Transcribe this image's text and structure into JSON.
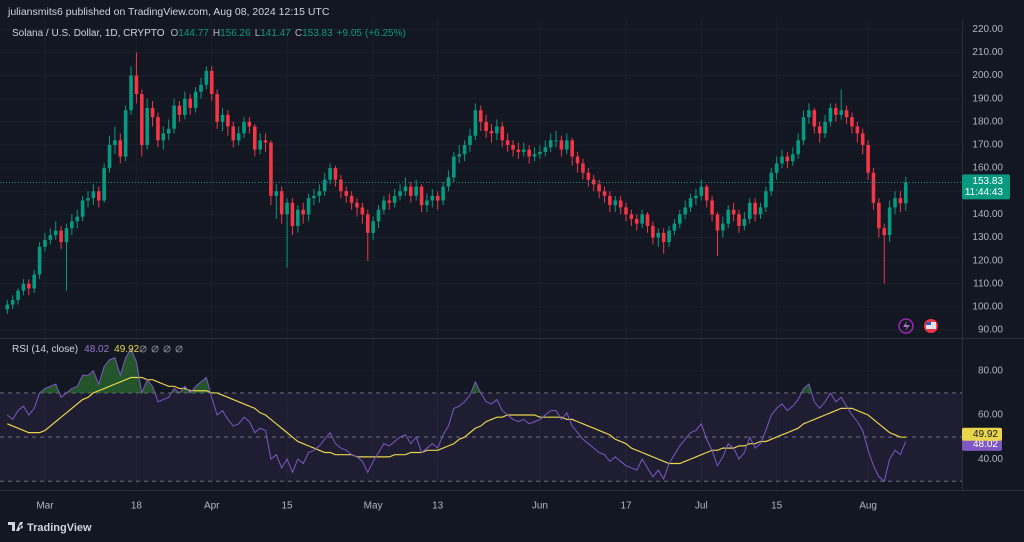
{
  "published_by": "juliansmits6 published on TradingView.com, Aug 08, 2024 12:15 UTC",
  "brand": "TradingView",
  "chart_data": [
    {
      "type": "candlestick",
      "title": "Solana / U.S. Dollar, 1D, CRYPTO",
      "ohlc_labels": [
        "O",
        "H",
        "L",
        "C"
      ],
      "change": "+9.05",
      "change_percent": "(+6.25%)",
      "countdown": "11:44:43",
      "up_color": "#089981",
      "down_color": "#f23645",
      "grid": true,
      "categories": [
        null,
        null,
        null,
        null,
        null,
        null,
        null,
        "Mar",
        null,
        null,
        null,
        null,
        null,
        null,
        null,
        null,
        null,
        null,
        null,
        null,
        null,
        null,
        null,
        null,
        "18",
        null,
        null,
        null,
        null,
        null,
        null,
        null,
        null,
        null,
        null,
        null,
        null,
        null,
        "Apr",
        null,
        null,
        null,
        null,
        null,
        null,
        null,
        null,
        null,
        null,
        null,
        null,
        null,
        "15",
        null,
        null,
        null,
        null,
        null,
        null,
        null,
        null,
        null,
        null,
        null,
        null,
        null,
        null,
        null,
        "May",
        null,
        null,
        null,
        null,
        null,
        null,
        null,
        null,
        null,
        null,
        null,
        "13",
        null,
        null,
        null,
        null,
        null,
        null,
        null,
        null,
        null,
        null,
        null,
        null,
        null,
        null,
        null,
        null,
        null,
        null,
        "Jun",
        null,
        null,
        null,
        null,
        null,
        null,
        null,
        null,
        null,
        null,
        null,
        null,
        null,
        null,
        null,
        "17",
        null,
        null,
        null,
        null,
        null,
        null,
        null,
        null,
        null,
        null,
        null,
        null,
        null,
        "Jul",
        null,
        null,
        null,
        null,
        null,
        null,
        null,
        null,
        null,
        null,
        null,
        null,
        null,
        "15",
        null,
        null,
        null,
        null,
        null,
        null,
        null,
        null,
        null,
        null,
        null,
        null,
        null,
        null,
        null,
        null,
        "Aug",
        null,
        null,
        null,
        null,
        null,
        null,
        null
      ],
      "open": [
        99,
        101,
        103,
        107,
        110,
        108,
        114,
        126,
        129,
        131,
        133,
        128,
        134,
        137,
        139,
        146,
        147,
        150,
        146,
        160,
        170,
        172,
        165,
        185,
        200,
        192,
        170,
        186,
        182,
        172,
        175,
        177,
        187,
        183,
        190,
        186,
        193,
        196,
        202,
        192,
        180,
        183,
        178,
        172,
        175,
        180,
        178,
        168,
        172,
        171,
        148,
        150,
        140,
        145,
        135,
        142,
        140,
        147,
        148,
        150,
        155,
        160,
        155,
        150,
        148,
        145,
        143,
        140,
        132,
        137,
        142,
        146,
        145,
        148,
        150,
        152,
        148,
        152,
        144,
        146,
        148,
        146,
        152,
        156,
        165,
        166,
        170,
        174,
        185,
        180,
        176,
        175,
        178,
        172,
        170,
        168,
        167,
        168,
        165,
        166,
        167,
        169,
        172,
        172,
        168,
        172,
        165,
        162,
        158,
        155,
        153,
        150,
        148,
        144,
        146,
        143,
        140,
        138,
        136,
        140,
        135,
        130,
        132,
        128,
        133,
        136,
        140,
        143,
        147,
        148,
        152,
        146,
        140,
        133,
        136,
        142,
        140,
        135,
        138,
        145,
        140,
        143,
        150,
        158,
        162,
        165,
        163,
        166,
        172,
        182,
        185,
        178,
        175,
        180,
        186,
        183,
        185,
        182,
        178,
        175,
        170,
        158,
        145,
        134,
        131,
        143,
        147,
        144.77
      ],
      "high": [
        103,
        105,
        108,
        112,
        112,
        116,
        128,
        132,
        134,
        137,
        135,
        136,
        140,
        142,
        148,
        150,
        153,
        152,
        162,
        174,
        178,
        175,
        187,
        204,
        210,
        194,
        190,
        189,
        184,
        178,
        181,
        190,
        189,
        193,
        192,
        195,
        199,
        204,
        204,
        194,
        186,
        185,
        180,
        178,
        182,
        182,
        179,
        175,
        175,
        172,
        153,
        152,
        147,
        147,
        144,
        145,
        149,
        151,
        153,
        158,
        162,
        161,
        157,
        152,
        150,
        147,
        145,
        142,
        139,
        144,
        148,
        149,
        151,
        153,
        156,
        154,
        155,
        153,
        149,
        151,
        150,
        154,
        159,
        167,
        170,
        172,
        177,
        188,
        187,
        183,
        179,
        181,
        180,
        175,
        172,
        171,
        171,
        170,
        169,
        170,
        172,
        175,
        176,
        174,
        175,
        173,
        167,
        164,
        160,
        157,
        155,
        152,
        150,
        148,
        148,
        145,
        142,
        140,
        142,
        141,
        137,
        134,
        134,
        135,
        138,
        142,
        146,
        149,
        151,
        155,
        153,
        148,
        141,
        139,
        144,
        145,
        142,
        141,
        147,
        147,
        145,
        152,
        160,
        165,
        168,
        167,
        169,
        175,
        185,
        188,
        186,
        180,
        183,
        188,
        188,
        194,
        187,
        184,
        180,
        177,
        172,
        160,
        147,
        136,
        146,
        150,
        150,
        156.26
      ],
      "low": [
        97,
        99,
        101,
        105,
        105,
        106,
        112,
        124,
        127,
        129,
        125,
        107,
        131,
        134,
        137,
        143,
        144,
        143,
        145,
        158,
        166,
        162,
        163,
        183,
        188,
        165,
        168,
        178,
        169,
        168,
        172,
        175,
        180,
        181,
        183,
        184,
        190,
        194,
        189,
        177,
        176,
        174,
        169,
        170,
        173,
        175,
        165,
        166,
        167,
        144,
        138,
        136,
        117,
        131,
        132,
        136,
        137,
        144,
        145,
        148,
        153,
        152,
        147,
        145,
        142,
        139,
        136,
        120,
        129,
        134,
        140,
        142,
        143,
        146,
        148,
        145,
        146,
        141,
        141,
        143,
        142,
        144,
        150,
        154,
        162,
        163,
        167,
        172,
        176,
        173,
        171,
        172,
        169,
        167,
        165,
        164,
        165,
        162,
        163,
        164,
        165,
        167,
        169,
        165,
        166,
        161,
        158,
        155,
        152,
        150,
        147,
        145,
        141,
        141,
        140,
        137,
        135,
        133,
        134,
        132,
        127,
        126,
        123,
        126,
        131,
        134,
        138,
        141,
        144,
        146,
        143,
        137,
        122,
        130,
        134,
        137,
        132,
        133,
        136,
        137,
        138,
        141,
        148,
        155,
        160,
        160,
        161,
        164,
        170,
        179,
        175,
        171,
        173,
        178,
        180,
        181,
        179,
        175,
        171,
        166,
        155,
        142,
        130,
        110,
        128,
        140,
        141,
        141.47
      ],
      "close": [
        101,
        103,
        107,
        110,
        108,
        114,
        126,
        129,
        131,
        133,
        128,
        134,
        137,
        139,
        146,
        147,
        150,
        146,
        160,
        170,
        172,
        165,
        185,
        200,
        192,
        170,
        186,
        182,
        172,
        175,
        177,
        187,
        183,
        190,
        186,
        193,
        196,
        202,
        192,
        180,
        183,
        178,
        172,
        175,
        180,
        178,
        168,
        172,
        171,
        148,
        150,
        140,
        145,
        135,
        142,
        140,
        147,
        148,
        150,
        155,
        160,
        155,
        150,
        148,
        145,
        143,
        140,
        132,
        137,
        142,
        146,
        145,
        148,
        150,
        152,
        148,
        152,
        144,
        146,
        148,
        146,
        152,
        156,
        165,
        166,
        170,
        174,
        185,
        180,
        176,
        175,
        178,
        172,
        170,
        168,
        167,
        168,
        165,
        166,
        167,
        169,
        172,
        172,
        168,
        172,
        165,
        162,
        158,
        155,
        153,
        150,
        148,
        144,
        146,
        143,
        140,
        138,
        136,
        140,
        135,
        130,
        132,
        128,
        133,
        136,
        140,
        143,
        147,
        148,
        152,
        146,
        140,
        133,
        136,
        142,
        140,
        135,
        138,
        145,
        140,
        143,
        150,
        158,
        162,
        165,
        163,
        166,
        172,
        182,
        185,
        178,
        175,
        180,
        186,
        183,
        185,
        182,
        178,
        175,
        170,
        158,
        145,
        134,
        131,
        143,
        147,
        144.77,
        153.83
      ],
      "ylim": [
        87,
        224
      ],
      "yticks": [
        {
          "value": 90,
          "label": "90.00"
        },
        {
          "value": 100,
          "label": "100.00"
        },
        {
          "value": 110,
          "label": "110.00"
        },
        {
          "value": 120,
          "label": "120.00"
        },
        {
          "value": 130,
          "label": "130.00"
        },
        {
          "value": 140,
          "label": "140.00"
        },
        {
          "value": 150,
          "label": "150.00"
        },
        {
          "value": 160,
          "label": "160.00"
        },
        {
          "value": 170,
          "label": "170.00"
        },
        {
          "value": 180,
          "label": "180.00"
        },
        {
          "value": 190,
          "label": "190.00"
        },
        {
          "value": 200,
          "label": "200.00"
        },
        {
          "value": 210,
          "label": "210.00"
        },
        {
          "value": 220,
          "label": "220.00"
        }
      ]
    },
    {
      "type": "line",
      "title": "RSI (14, close)",
      "ylim": [
        26,
        94
      ],
      "levels": [
        70,
        50,
        30
      ],
      "overbought_color": "#2e7d32",
      "yticks": [
        {
          "value": 40,
          "label": "40.00"
        },
        {
          "value": 60,
          "label": "60.00"
        },
        {
          "value": 80,
          "label": "80.00"
        }
      ],
      "series": [
        {
          "color": "#7e57c2",
          "values": [
            60,
            58,
            62,
            64,
            60,
            63,
            70,
            72,
            73,
            74,
            68,
            70,
            72,
            73,
            78,
            78,
            80,
            74,
            82,
            85,
            86,
            78,
            86,
            90,
            84,
            70,
            76,
            73,
            66,
            67,
            68,
            72,
            70,
            73,
            70,
            73,
            75,
            77,
            68,
            60,
            62,
            58,
            55,
            56,
            59,
            57,
            52,
            54,
            53,
            40,
            42,
            36,
            40,
            34,
            40,
            38,
            43,
            44,
            46,
            49,
            52,
            47,
            45,
            44,
            42,
            41,
            39,
            34,
            39,
            43,
            47,
            46,
            48,
            50,
            51,
            47,
            50,
            43,
            45,
            47,
            45,
            51,
            55,
            63,
            64,
            66,
            69,
            75,
            70,
            66,
            65,
            67,
            62,
            60,
            58,
            57,
            58,
            56,
            57,
            58,
            60,
            62,
            62,
            58,
            61,
            55,
            52,
            49,
            47,
            45,
            43,
            42,
            39,
            41,
            39,
            37,
            36,
            35,
            40,
            36,
            32,
            35,
            31,
            38,
            42,
            46,
            49,
            52,
            53,
            56,
            49,
            44,
            37,
            41,
            47,
            45,
            40,
            43,
            50,
            45,
            47,
            53,
            60,
            63,
            65,
            62,
            64,
            67,
            72,
            74,
            66,
            63,
            66,
            70,
            66,
            68,
            64,
            60,
            57,
            53,
            44,
            37,
            32,
            30,
            40,
            44,
            42,
            48.02
          ]
        },
        {
          "color": "#e8d44d",
          "values": [
            56,
            55,
            54,
            53,
            52,
            52,
            52,
            53,
            55,
            57,
            59,
            61,
            63,
            65,
            67,
            68,
            70,
            71,
            72,
            73,
            74,
            75,
            76,
            77,
            77,
            77,
            76,
            76,
            75,
            74,
            73,
            73,
            72,
            72,
            71,
            71,
            71,
            71,
            70,
            70,
            69,
            68,
            67,
            66,
            65,
            64,
            63,
            61,
            60,
            58,
            56,
            54,
            52,
            50,
            48,
            47,
            46,
            45,
            44,
            43,
            43,
            42,
            42,
            42,
            42,
            41,
            41,
            41,
            41,
            41,
            41,
            41,
            42,
            42,
            42,
            43,
            43,
            43,
            44,
            44,
            44,
            45,
            46,
            47,
            49,
            50,
            52,
            54,
            55,
            57,
            58,
            59,
            59,
            60,
            60,
            60,
            60,
            60,
            60,
            59,
            59,
            59,
            59,
            59,
            58,
            58,
            57,
            56,
            55,
            54,
            53,
            52,
            51,
            49,
            48,
            47,
            45,
            44,
            43,
            42,
            41,
            40,
            39,
            38,
            38,
            38,
            39,
            40,
            41,
            42,
            43,
            44,
            44,
            45,
            45,
            45,
            46,
            46,
            47,
            47,
            48,
            48,
            49,
            50,
            51,
            52,
            53,
            54,
            56,
            57,
            58,
            59,
            60,
            61,
            62,
            63,
            63,
            63,
            62,
            61,
            60,
            58,
            56,
            54,
            52,
            51,
            50,
            49.92
          ]
        }
      ]
    }
  ]
}
